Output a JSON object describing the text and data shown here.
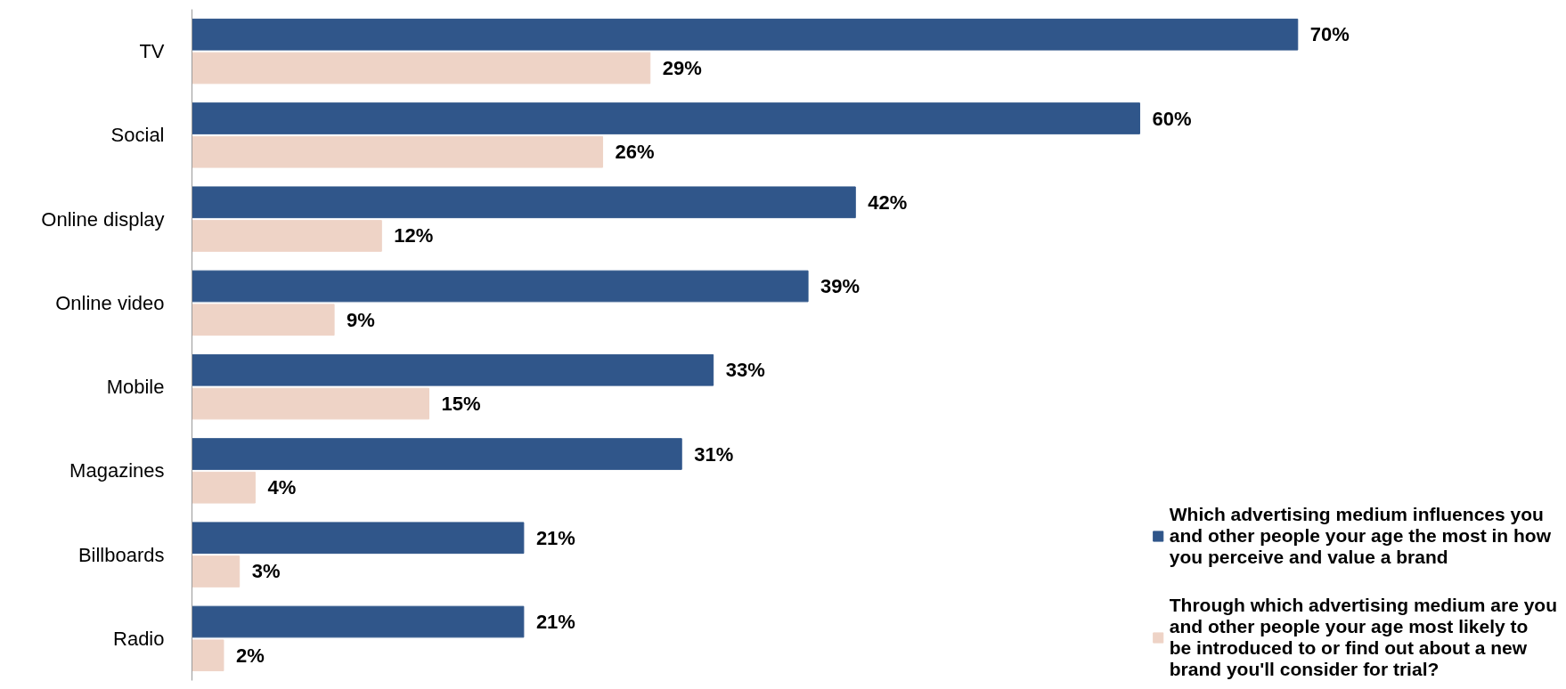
{
  "chart_data": {
    "type": "bar",
    "orientation": "horizontal",
    "categories": [
      "TV",
      "Social",
      "Online display",
      "Online video",
      "Mobile",
      "Magazines",
      "Billboards",
      "Radio"
    ],
    "series": [
      {
        "name": "Which advertising medium influences you and other people your age the most in how you perceive and value a brand",
        "color": "#30568a",
        "values": [
          70,
          60,
          42,
          39,
          33,
          31,
          21,
          21
        ],
        "value_labels": [
          "70%",
          "60%",
          "42%",
          "39%",
          "33%",
          "31%",
          "21%",
          "21%"
        ]
      },
      {
        "name": "Through which advertising medium are you and other people your age most likely to be introduced to or find out about a new brand you'll consider for trial?",
        "color": "#eed3c6",
        "values": [
          29,
          26,
          12,
          9,
          15,
          4,
          3,
          2
        ],
        "value_labels": [
          "29%",
          "26%",
          "12%",
          "9%",
          "15%",
          "4%",
          "3%",
          "2%"
        ]
      }
    ],
    "legend": "bottom right",
    "grid": false
  }
}
